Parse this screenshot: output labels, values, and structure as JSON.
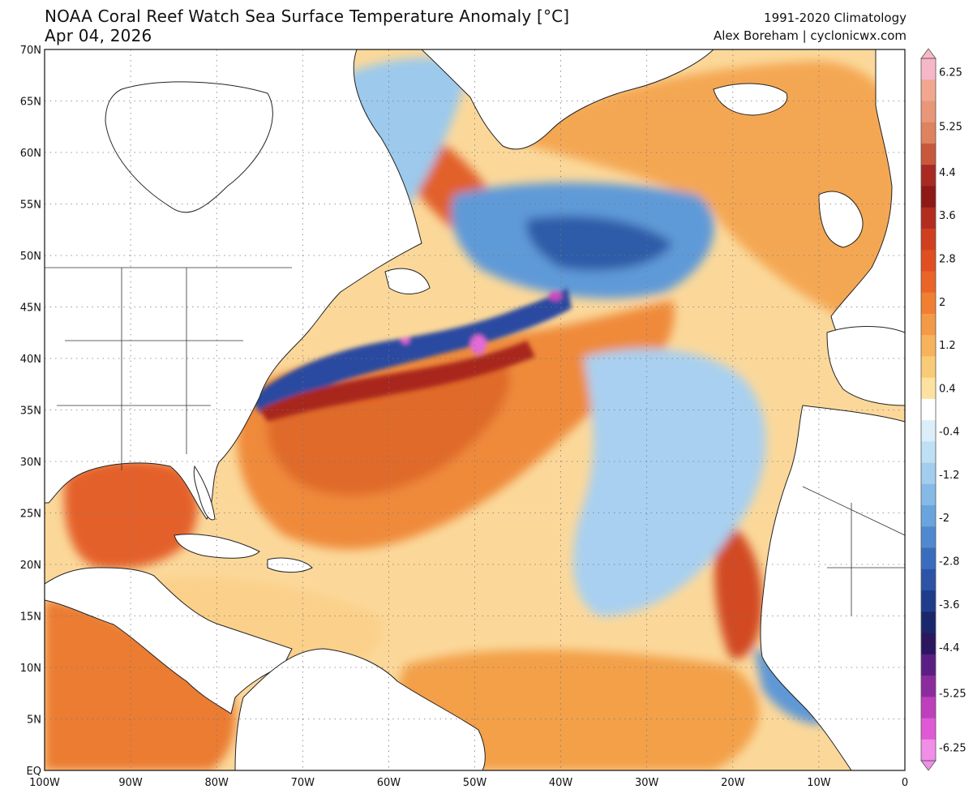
{
  "title": {
    "line1": "NOAA Coral Reef Watch Sea Surface Temperature Anomaly [°C]",
    "line2": "Apr 04, 2026",
    "climatology": "1991-2020 Climatology",
    "credit": "Alex Boreham | cyclonicwx.com"
  },
  "map": {
    "lat_labels": [
      "70N",
      "65N",
      "60N",
      "55N",
      "50N",
      "45N",
      "40N",
      "35N",
      "30N",
      "25N",
      "20N",
      "15N",
      "10N",
      "5N",
      "EQ"
    ],
    "lon_labels": [
      "100W",
      "90W",
      "80W",
      "70W",
      "60W",
      "50W",
      "40W",
      "30W",
      "20W",
      "10W",
      "0"
    ],
    "lat_range": [
      0,
      70
    ],
    "lon_range": [
      -100,
      0
    ],
    "grid": "dotted"
  },
  "colorbar": {
    "labels": [
      "6.25",
      "5.25",
      "4.4",
      "3.6",
      "2.8",
      "2",
      "1.2",
      "0.4",
      "-0.4",
      "-1.2",
      "-2",
      "-2.8",
      "-3.6",
      "-4.4",
      "-5.25",
      "-6.25"
    ],
    "colors": [
      "#f7b7c8",
      "#f1a78f",
      "#e99779",
      "#de835f",
      "#c8583c",
      "#a82a23",
      "#8d1a16",
      "#b32d1e",
      "#cf3f20",
      "#e04e22",
      "#ea6427",
      "#f07f32",
      "#f39a45",
      "#f6b35c",
      "#f9cb78",
      "#fde1a0",
      "#ffffff",
      "#dbeefa",
      "#bfdff4",
      "#a3cdee",
      "#86bae6",
      "#6aa4dc",
      "#4f89cf",
      "#3a6dbd",
      "#2c53a6",
      "#203d8b",
      "#1a276b",
      "#2a1760",
      "#5b1f83",
      "#8c2b9e",
      "#bd3fbb",
      "#e058d3",
      "#f08ee8"
    ],
    "range": [
      -6.5,
      6.5
    ]
  }
}
